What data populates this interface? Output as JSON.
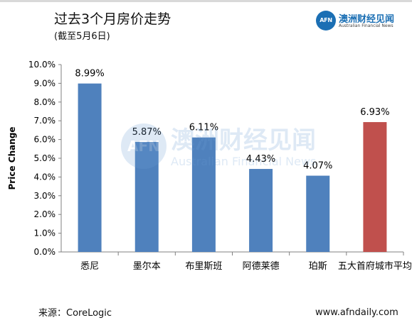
{
  "header": {
    "title": "过去3个月房价走势",
    "subtitle": "(截至5月6日)"
  },
  "logo": {
    "mark": "AFN",
    "name": "澳洲财经见闻",
    "english": "Australian Financial News"
  },
  "watermark": {
    "mark": "AFN",
    "name": "澳洲财经见闻",
    "english": "Australian Financial News"
  },
  "footer": {
    "source": "来源：CoreLogic",
    "website": "www.afndaily.com"
  },
  "colors": {
    "bar_default": "#4f81bd",
    "bar_highlight": "#c0504d",
    "axis": "#808080"
  },
  "chart_data": {
    "type": "bar",
    "title": "",
    "xlabel": "",
    "ylabel": "Price Change",
    "ylim": [
      0,
      10
    ],
    "yticks": [
      "0.0%",
      "1.0%",
      "2.0%",
      "3.0%",
      "4.0%",
      "5.0%",
      "6.0%",
      "7.0%",
      "8.0%",
      "9.0%",
      "10.0%"
    ],
    "categories": [
      "悉尼",
      "墨尔本",
      "布里斯班",
      "阿德莱德",
      "珀斯",
      "五大首府城市平均"
    ],
    "values": [
      8.99,
      5.87,
      6.11,
      4.43,
      4.07,
      6.93
    ],
    "data_labels": [
      "8.99%",
      "5.87%",
      "6.11%",
      "4.43%",
      "4.07%",
      "6.93%"
    ],
    "highlight_index": 5,
    "grid": false,
    "legend": "none"
  }
}
